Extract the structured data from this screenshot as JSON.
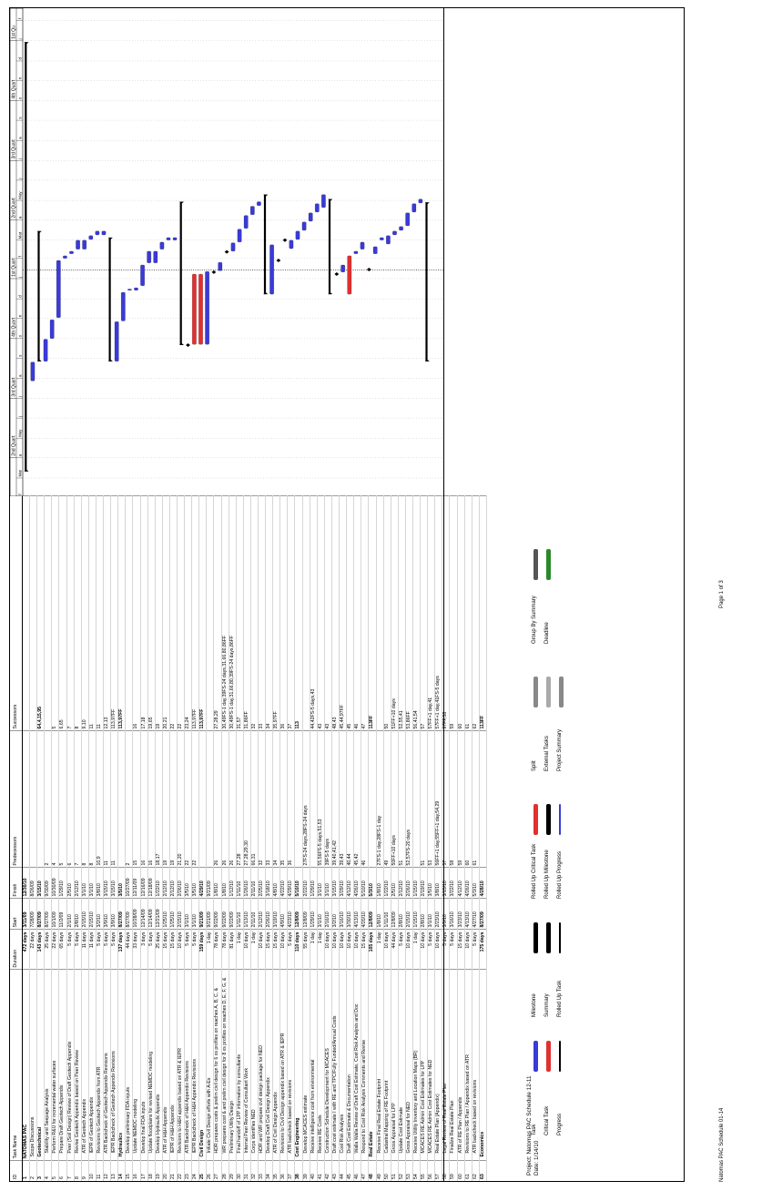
{
  "columns": [
    "ID",
    "Task Name",
    "Duration",
    "Start",
    "Finish",
    "Predecessors",
    "Successors"
  ],
  "timescale": {
    "top": [
      "Quart",
      "2nd Quart",
      "3rd Quart",
      "4th Quart",
      "1st Quart",
      "2nd Quart",
      "3rd Quart",
      "4th Quart",
      "1st Qu"
    ],
    "bottom": [
      "e",
      "Mar",
      "Apr",
      "a",
      "Jun",
      "Jul",
      "u",
      "e",
      "Oct",
      "o",
      "e",
      "Jan",
      "e",
      "Mar",
      "Apr",
      "a",
      "Jun",
      "Jul",
      "u",
      "e",
      "Oct",
      "o",
      "e",
      "Jan",
      "e",
      "Mar",
      "Apr",
      "a",
      "Jun",
      "Jul",
      "u",
      "e",
      "Oct",
      "o",
      "e"
    ]
  },
  "tasks": [
    {
      "id": "1",
      "name": "NATOMAS PAC",
      "dur": "472 days",
      "start": "3/11/09",
      "finish": "12/30/10",
      "pred": "",
      "succ": "",
      "level": 0,
      "summary": true
    },
    {
      "id": "2",
      "name": "Scope Discussions",
      "dur": "22 days",
      "start": "7/28/09",
      "finish": "8/26/09",
      "pred": "",
      "succ": "",
      "level": 1
    },
    {
      "id": "3",
      "name": "Geotechnical",
      "dur": "143 days",
      "start": "8/27/09",
      "finish": "3/15/10",
      "pred": "",
      "succ": "64,4,15,95",
      "level": 1,
      "summary": true
    },
    {
      "id": "4",
      "name": "Stability and Seepage Analysis",
      "dur": "25 days",
      "start": "8/27/09",
      "finish": "9/30/09",
      "pred": "2",
      "succ": "",
      "level": 2
    },
    {
      "id": "5",
      "name": "Perform R&U for incremental water surfaces",
      "dur": "22 days",
      "start": "10/1/09",
      "finish": "10/30/09",
      "pred": "4",
      "succ": "5",
      "level": 2
    },
    {
      "id": "6",
      "name": "Prepare Draft Geotech Appendix",
      "dur": "65 days",
      "start": "11/2/09",
      "finish": "1/29/10",
      "pred": "5",
      "succ": "6,65",
      "level": 2
    },
    {
      "id": "7",
      "name": "Peer (Soil Design) Review of Draft Geotech Appendix",
      "dur": "5 days",
      "start": "2/1/10",
      "finish": "2/5/10",
      "pred": "6",
      "succ": "7",
      "level": 2
    },
    {
      "id": "8",
      "name": "Revise Geotech Appendix based on Peer Review",
      "dur": "5 days",
      "start": "2/8/10",
      "finish": "2/12/10",
      "pred": "7",
      "succ": "8",
      "level": 2
    },
    {
      "id": "9",
      "name": "ATR of Geotech Appendix",
      "dur": "11 days",
      "start": "2/15/10",
      "finish": "3/1/10",
      "pred": "8",
      "succ": "9,10",
      "level": 2
    },
    {
      "id": "10",
      "name": "IEPR of Geotech Appendix",
      "dur": "11 days",
      "start": "2/15/10",
      "finish": "3/1/10",
      "pred": "8",
      "succ": "11",
      "level": 2
    },
    {
      "id": "11",
      "name": "Revisions to Geotech Appendix from ATR",
      "dur": "5 days",
      "start": "3/2/10",
      "finish": "3/8/10",
      "pred": "10,9",
      "succ": "11",
      "level": 2
    },
    {
      "id": "12",
      "name": "ATR Backcheck of Geotech Appendix Revisions",
      "dur": "5 days",
      "start": "3/9/10",
      "finish": "3/15/10",
      "pred": "11",
      "succ": "12,13",
      "level": 2
    },
    {
      "id": "13",
      "name": "IEPR Backcheck of Geotech Appendix Revisions",
      "dur": "5 days",
      "start": "3/9/10",
      "finish": "3/15/10",
      "pred": "11",
      "succ": "113,97FF",
      "level": 2
    },
    {
      "id": "14",
      "name": "Hydraulics",
      "dur": "137 days",
      "start": "8/27/09",
      "finish": "3/5/10",
      "pred": "",
      "succ": "113,97FF",
      "level": 1,
      "summary": true
    },
    {
      "id": "15",
      "name": "Develop preliminary FDA inputs",
      "dur": "44 days",
      "start": "8/27/09",
      "finish": "10/27/09",
      "pred": "2",
      "succ": "",
      "level": 2
    },
    {
      "id": "16",
      "name": "Update NEMDC modeling",
      "dur": "33 days",
      "start": "10/28/09",
      "finish": "12/11/09",
      "pred": "15",
      "succ": "16",
      "level": 2
    },
    {
      "id": "17",
      "name": "Develop final FDA inputs",
      "dur": "3 days",
      "start": "12/14/09",
      "finish": "12/16/09",
      "pred": "16",
      "succ": "17,18",
      "level": 2
    },
    {
      "id": "18",
      "name": "Update floodplains for revised NEMDC modeling",
      "dur": "5 days",
      "start": "12/14/09",
      "finish": "12/18/09",
      "pred": "16",
      "succ": "19,65",
      "level": 2
    },
    {
      "id": "19",
      "name": "Develop Hydraulic Appendix",
      "dur": "25 days",
      "start": "12/21/09",
      "finish": "1/22/10",
      "pred": "18,17",
      "succ": "19",
      "level": 2
    },
    {
      "id": "20",
      "name": "ATR of H&H Appendix",
      "dur": "15 days",
      "start": "1/25/10",
      "finish": "2/12/10",
      "pred": "19",
      "succ": "20,21",
      "level": 2
    },
    {
      "id": "21",
      "name": "IEPR of H&H Appendix",
      "dur": "15 days",
      "start": "1/25/10",
      "finish": "2/12/10",
      "pred": "19",
      "succ": "22",
      "level": 2
    },
    {
      "id": "22",
      "name": "Revisions to H&H appendix based on ATR & IEPR",
      "dur": "10 days",
      "start": "2/15/10",
      "finish": "2/26/10",
      "pred": "21,20",
      "succ": "22",
      "level": 2
    },
    {
      "id": "23",
      "name": "ATR Backcheck of H&H Appendix Revisions",
      "dur": "5 days",
      "start": "3/1/10",
      "finish": "3/5/10",
      "pred": "22",
      "succ": "23,24",
      "level": 2
    },
    {
      "id": "24",
      "name": "IEPR Backcheck of H&H Appendix Revisions",
      "dur": "5 days",
      "start": "3/1/10",
      "finish": "3/5/10",
      "pred": "22",
      "succ": "113,97FF",
      "level": 2
    },
    {
      "id": "25",
      "name": "Civil Design",
      "dur": "159 days",
      "start": "9/21/09",
      "finish": "4/29/10",
      "pred": "",
      "succ": "113,97FF",
      "level": 1,
      "summary": true
    },
    {
      "id": "26",
      "name": "Initiate Civil Design efforts with A-Es",
      "dur": "1 day",
      "start": "9/21/09",
      "finish": "9/21/09",
      "pred": "",
      "succ": "",
      "level": 2
    },
    {
      "id": "27",
      "name": "HDR prepares costs & prelim civil design for 6 xs profiles on reaches A, B, C, &",
      "dur": "78 days",
      "start": "9/22/09",
      "finish": "1/8/10",
      "pred": "26",
      "succ": "27,28,29",
      "level": 2
    },
    {
      "id": "28",
      "name": "WR prepares cost & and prelim civil design for 8 xs profiles on reaches D, E, F, G, &",
      "dur": "78 days",
      "start": "9/22/09",
      "finish": "1/8/10",
      "pred": "26",
      "succ": "30,49FS-1 day,39FS-24 days,31,66,80,86FF",
      "level": 2
    },
    {
      "id": "29",
      "name": "Preliminary Utility Design",
      "dur": "81 days",
      "start": "9/22/09",
      "finish": "1/12/10",
      "pred": "26",
      "succ": "30,49FS-1 day,31,66,80,39FS-24 days,86FF",
      "level": 2
    },
    {
      "id": "30",
      "name": "Final handoff of LPP information by consultants",
      "dur": "1 day",
      "start": "1/11/10",
      "finish": "1/11/10",
      "pred": "27,28",
      "succ": "31,57",
      "level": 2
    },
    {
      "id": "31",
      "name": "Internal Peer Review of Consultant Work",
      "dur": "10 days",
      "start": "1/13/10",
      "finish": "1/26/10",
      "pred": "27,28,29,30",
      "succ": "31,86FF",
      "level": 2
    },
    {
      "id": "32",
      "name": "Corps identifies NED",
      "dur": "1 day",
      "start": "2/11/10",
      "finish": "2/11/10",
      "pred": "66,31",
      "succ": "32",
      "level": 2
    },
    {
      "id": "33",
      "name": "HDR and WR prepare civil design package for NED",
      "dur": "10 days",
      "start": "2/12/10",
      "finish": "2/25/10",
      "pred": "32",
      "succ": "33",
      "level": 2
    },
    {
      "id": "34",
      "name": "Develop Draft Civil Design Appendix",
      "dur": "15 days",
      "start": "2/26/10",
      "finish": "3/18/10",
      "pred": "33",
      "succ": "34",
      "level": 2
    },
    {
      "id": "35",
      "name": "ATR of Civil Design Appendix",
      "dur": "15 days",
      "start": "3/19/10",
      "finish": "4/8/10",
      "pred": "34",
      "succ": "35,97FF",
      "level": 2
    },
    {
      "id": "36",
      "name": "Revisions to Civil Design appendix based on ATR & IEPR",
      "dur": "10 days",
      "start": "4/9/10",
      "finish": "4/22/10",
      "pred": "35",
      "succ": "36",
      "level": 2
    },
    {
      "id": "37",
      "name": "ATR backcheck based on revisions",
      "dur": "5 days",
      "start": "4/23/10",
      "finish": "4/29/10",
      "pred": "36",
      "succ": "37",
      "level": 2
    },
    {
      "id": "38",
      "name": "Cost Engineering",
      "dur": "110 days",
      "start": "12/8/09",
      "finish": "5/10/10",
      "pred": "",
      "succ": "113",
      "level": 1,
      "summary": true
    },
    {
      "id": "39",
      "name": "Develop MCACES estimate",
      "dur": "55 days",
      "start": "12/8/09",
      "finish": "2/22/10",
      "pred": "27FS-24 days,28FS-24 days",
      "succ": "",
      "level": 2
    },
    {
      "id": "40",
      "name": "Receive intelligence cost from environmental",
      "dur": "1 day",
      "start": "1/29/10",
      "finish": "1/29/10",
      "pred": "",
      "succ": "44,42FS-5 days,43",
      "level": 2
    },
    {
      "id": "41",
      "name": "Receive RE Costs",
      "dur": "1 day",
      "start": "3/1/10",
      "finish": "3/1/10",
      "pred": "55,56FS-5 days,51,53",
      "succ": "43",
      "level": 2
    },
    {
      "id": "42",
      "name": "Construction Schedule Development for MCACES",
      "dur": "10 days",
      "start": "2/16/10",
      "finish": "3/1/10",
      "pred": "39FS-5 days",
      "succ": "43",
      "level": 2
    },
    {
      "id": "43",
      "name": "Draft cost estimate I with RE and TPC/Fully Funded/Annual Costs",
      "dur": "10 days",
      "start": "3/2/10",
      "finish": "3/15/10",
      "pred": "39,40,41,42",
      "succ": "48,43",
      "level": 2
    },
    {
      "id": "44",
      "name": "Cost Risk Analysis",
      "dur": "10 days",
      "start": "3/16/10",
      "finish": "3/29/10",
      "pred": "39,43",
      "succ": "45,44,97FF",
      "level": 2
    },
    {
      "id": "45",
      "name": "Draft Cost Estimate & Documentation",
      "dur": "10 days",
      "start": "3/30/10",
      "finish": "4/12/10",
      "pred": "40,44",
      "succ": "45",
      "level": 2
    },
    {
      "id": "46",
      "name": "Walla Walla Review of Draft Cost Estimate, Cost Risk Analysis and Doc",
      "dur": "10 days",
      "start": "4/13/10",
      "finish": "4/26/10",
      "pred": "45,42",
      "succ": "46",
      "level": 2
    },
    {
      "id": "47",
      "name": "Respond to Cost Risk Analysis Comments and Revise",
      "dur": "15 days",
      "start": "4/20/10",
      "finish": "5/10/10",
      "pred": "46",
      "succ": "47",
      "level": 2
    },
    {
      "id": "48",
      "name": "Real Estate",
      "dur": "105 days",
      "start": "12/8/09",
      "finish": "5/3/10",
      "pred": "",
      "succ": "113FF",
      "level": 1,
      "summary": true
    },
    {
      "id": "49",
      "name": "Receive Final Real Estate Footprint",
      "dur": "1 day",
      "start": "1/8/10",
      "finish": "1/8/10",
      "pred": "27FS-1 day,28FS-1 day",
      "succ": "",
      "level": 2
    },
    {
      "id": "50",
      "name": "Cadastral Mapping of RE Footprint",
      "dur": "10 days",
      "start": "1/11/10",
      "finish": "1/22/10",
      "pred": "49",
      "succ": "50",
      "level": 2
    },
    {
      "id": "51",
      "name": "Gross Appraisal for LPP",
      "dur": "44 days",
      "start": "12/8/09",
      "finish": "2/5/10",
      "pred": "50FF+10 days",
      "succ": "51FF+10 days",
      "level": 2
    },
    {
      "id": "52",
      "name": "Update Cost Estimate",
      "dur": "5 days",
      "start": "2/8/10",
      "finish": "2/12/10",
      "pred": "51",
      "succ": "52,55,41",
      "level": 2
    },
    {
      "id": "53",
      "name": "Gross Appraisal for NED",
      "dur": "10 days",
      "start": "2/15/10",
      "finish": "2/26/10",
      "pred": "52,57FS-20 days",
      "succ": "53,86FF",
      "level": 2
    },
    {
      "id": "54",
      "name": "Receive Utility Inventory and Location Maps (BR)",
      "dur": "1 day",
      "start": "1/15/10",
      "finish": "1/15/10",
      "pred": "",
      "succ": "56,41,54",
      "level": 2
    },
    {
      "id": "55",
      "name": "MCACES RE Admin Cost Estimates for LPP",
      "dur": "10 days",
      "start": "2/8/10",
      "finish": "2/19/10",
      "pred": "51",
      "succ": "57",
      "level": 2
    },
    {
      "id": "56",
      "name": "MCACES RE Admin Cost Estimates for NED",
      "dur": "5 days",
      "start": "3/1/10",
      "finish": "3/5/10",
      "pred": "53",
      "succ": "57FF+1 day,41",
      "level": 2
    },
    {
      "id": "57",
      "name": "Real Estate Plan (Appendix)",
      "dur": "10 days",
      "start": "2/23/10",
      "finish": "3/8/10",
      "pred": "56FF+1 day,55FF+1 day,54,29",
      "succ": "57FF+1 day,41FS-5 days",
      "level": 2
    },
    {
      "id": "58",
      "name": "Legal Review of Real Estate Plan",
      "dur": "5 days",
      "start": "3/9/10",
      "finish": "3/15/10",
      "pred": "57",
      "succ": "97FF,58",
      "level": 2
    },
    {
      "id": "59",
      "name": "Finalize Real Estate Plan",
      "dur": "5 days",
      "start": "3/16/10",
      "finish": "3/22/10",
      "pred": "58",
      "succ": "59",
      "level": 2
    },
    {
      "id": "60",
      "name": "ATR of RE Plan / Appendix",
      "dur": "15 days",
      "start": "3/23/10",
      "finish": "4/12/10",
      "pred": "59",
      "succ": "60",
      "level": 2
    },
    {
      "id": "61",
      "name": "Revisions to RE Plan / Appendix based on ATR",
      "dur": "10 days",
      "start": "4/13/10",
      "finish": "4/26/10",
      "pred": "60",
      "succ": "61",
      "level": 2
    },
    {
      "id": "62",
      "name": "ATR backcheck based on revisions",
      "dur": "5 days",
      "start": "4/27/10",
      "finish": "5/3/10",
      "pred": "61",
      "succ": "62",
      "level": 2
    },
    {
      "id": "63",
      "name": "Economics",
      "dur": "175 days",
      "start": "8/27/09",
      "finish": "4/28/10",
      "pred": "",
      "succ": "113FF",
      "level": 1,
      "summary": true
    }
  ],
  "legend": {
    "project": "Project: Natomas PAC Schedule 12-11",
    "date": "Date: 1/14/10",
    "items": [
      {
        "label": "Task"
      },
      {
        "label": "Critical Task"
      },
      {
        "label": "Progress"
      },
      {
        "label": "Milestone"
      },
      {
        "label": "Summary"
      },
      {
        "label": "Rolled Up Task"
      },
      {
        "label": "Rolled Up Critical Task"
      },
      {
        "label": "Rolled Up Milestone"
      },
      {
        "label": "Rolled Up Progress"
      },
      {
        "label": "Split"
      },
      {
        "label": "External Tasks"
      },
      {
        "label": "Project Summary"
      },
      {
        "label": "Group By Summary"
      },
      {
        "label": "Deadline"
      }
    ]
  },
  "footer": {
    "file": "Natomas PAC Schedule 01-14",
    "page": "Page 1 of 3"
  },
  "colors": {
    "task": "#3a3ad8",
    "critical": "#e03030",
    "summary": "#000000"
  }
}
